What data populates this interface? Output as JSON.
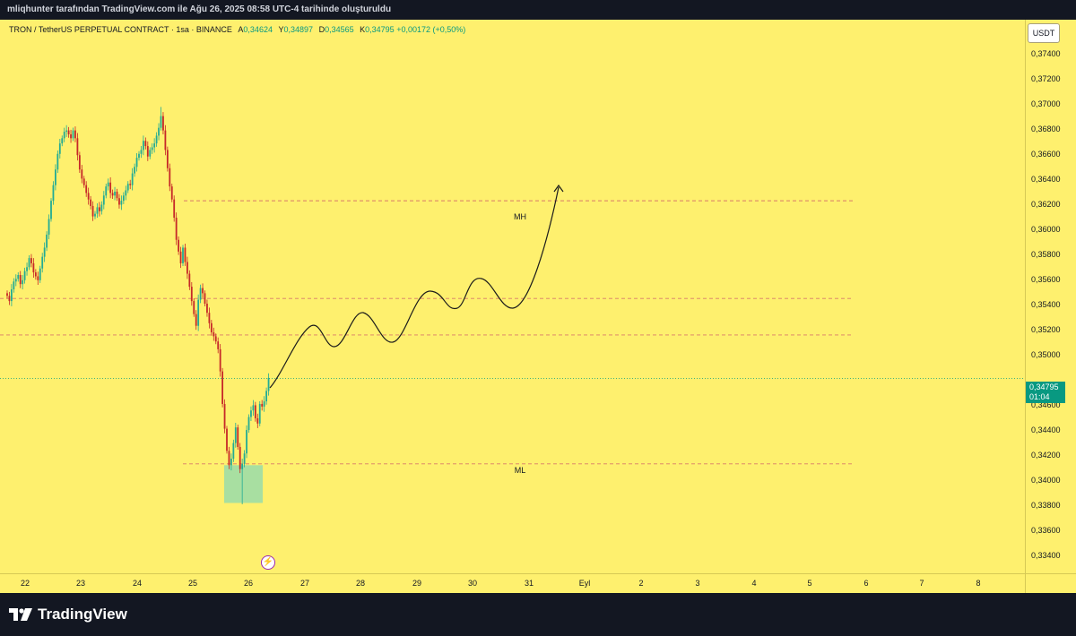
{
  "header": {
    "attribution": "mliqhunter tarafından TradingView.com ile Ağu 26, 2025 08:58 UTC-4 tarihinde oluşturuldu"
  },
  "legend": {
    "symbol": "TRON / TetherUS PERPETUAL CONTRACT · 1sa · BINANCE",
    "open_label": "A",
    "open": "0,34624",
    "high_label": "Y",
    "high": "0,34897",
    "low_label": "D",
    "low": "0,34565",
    "close_label": "K",
    "close": "0,34795",
    "change": "+0,00172 (+0,50%)"
  },
  "price_scale": {
    "unit": "USDT",
    "ticks": [
      "0,37400",
      "0,37200",
      "0,37000",
      "0,36800",
      "0,36600",
      "0,36400",
      "0,36200",
      "0,36000",
      "0,35800",
      "0,35600",
      "0,35400",
      "0,35200",
      "0,35000",
      "0,34600",
      "0,34400",
      "0,34200",
      "0,34000",
      "0,33800",
      "0,33600",
      "0,33400"
    ],
    "current_price": "0,34795",
    "countdown": "01:04"
  },
  "time_axis": {
    "labels": [
      "22",
      "23",
      "24",
      "25",
      "26",
      "27",
      "28",
      "29",
      "30",
      "31",
      "Eyl",
      "2",
      "3",
      "4",
      "5",
      "6",
      "7",
      "8"
    ]
  },
  "drawings": {
    "mh_label": "MH",
    "ml_label": "ML"
  },
  "icons": {
    "flash": "lightning-icon",
    "brand": "tradingview-logo-icon"
  },
  "footer": {
    "brand": "TradingView"
  },
  "colors": {
    "background": "#fef06e",
    "up": "#22ab94",
    "down": "#c62828",
    "line": "#1b1b1b",
    "zone": "#a8dfa1",
    "badge": "#089981"
  },
  "chart_data": {
    "type": "candlestick",
    "symbol": "TRON / TetherUS PERPETUAL CONTRACT",
    "interval": "1sa",
    "x_categories": [
      "22",
      "23",
      "24",
      "25",
      "26",
      "27",
      "28",
      "29",
      "30",
      "31",
      "Eyl",
      "2",
      "3",
      "4",
      "5",
      "6",
      "7",
      "8"
    ],
    "ylim": [
      0.333,
      0.3755
    ],
    "last_price": 0.34795,
    "levels": [
      {
        "label": "MH",
        "price": 0.3616
      },
      {
        "label": "",
        "price": 0.3541
      },
      {
        "label": "",
        "price": 0.3513
      },
      {
        "label": "ML",
        "price": 0.3414
      }
    ],
    "zone": {
      "price_low": 0.3384,
      "price_high": 0.3413
    },
    "closes": [
      0.3543,
      0.3539,
      0.3548,
      0.3554,
      0.3556,
      0.3559,
      0.3552,
      0.3555,
      0.3562,
      0.3565,
      0.3572,
      0.3568,
      0.3561,
      0.3558,
      0.3555,
      0.3564,
      0.3573,
      0.358,
      0.359,
      0.3602,
      0.3616,
      0.3628,
      0.364,
      0.3652,
      0.366,
      0.3664,
      0.3669,
      0.367,
      0.3667,
      0.3664,
      0.367,
      0.3664,
      0.3651,
      0.364,
      0.3633,
      0.3628,
      0.3622,
      0.3617,
      0.3612,
      0.3604,
      0.3606,
      0.3611,
      0.3608,
      0.3613,
      0.362,
      0.3627,
      0.363,
      0.3622,
      0.362,
      0.3623,
      0.3618,
      0.3613,
      0.3616,
      0.362,
      0.3624,
      0.3629,
      0.3628,
      0.3637,
      0.3642,
      0.3649,
      0.3652,
      0.3655,
      0.3662,
      0.3658,
      0.365,
      0.3655,
      0.3657,
      0.366,
      0.3666,
      0.3672,
      0.3681,
      0.367,
      0.3655,
      0.3641,
      0.3627,
      0.3617,
      0.3603,
      0.3586,
      0.3577,
      0.3568,
      0.358,
      0.3569,
      0.356,
      0.355,
      0.3539,
      0.3529,
      0.352,
      0.354,
      0.3549,
      0.3545,
      0.3537,
      0.353,
      0.3522,
      0.3515,
      0.3512,
      0.3508,
      0.3502,
      0.3485,
      0.346,
      0.3441,
      0.3424,
      0.3413,
      0.3418,
      0.343,
      0.3442,
      0.3427,
      0.341,
      0.3414,
      0.3422,
      0.344,
      0.345,
      0.3455,
      0.3459,
      0.3449,
      0.3445,
      0.346,
      0.3458,
      0.3462,
      0.347,
      0.348
    ]
  }
}
